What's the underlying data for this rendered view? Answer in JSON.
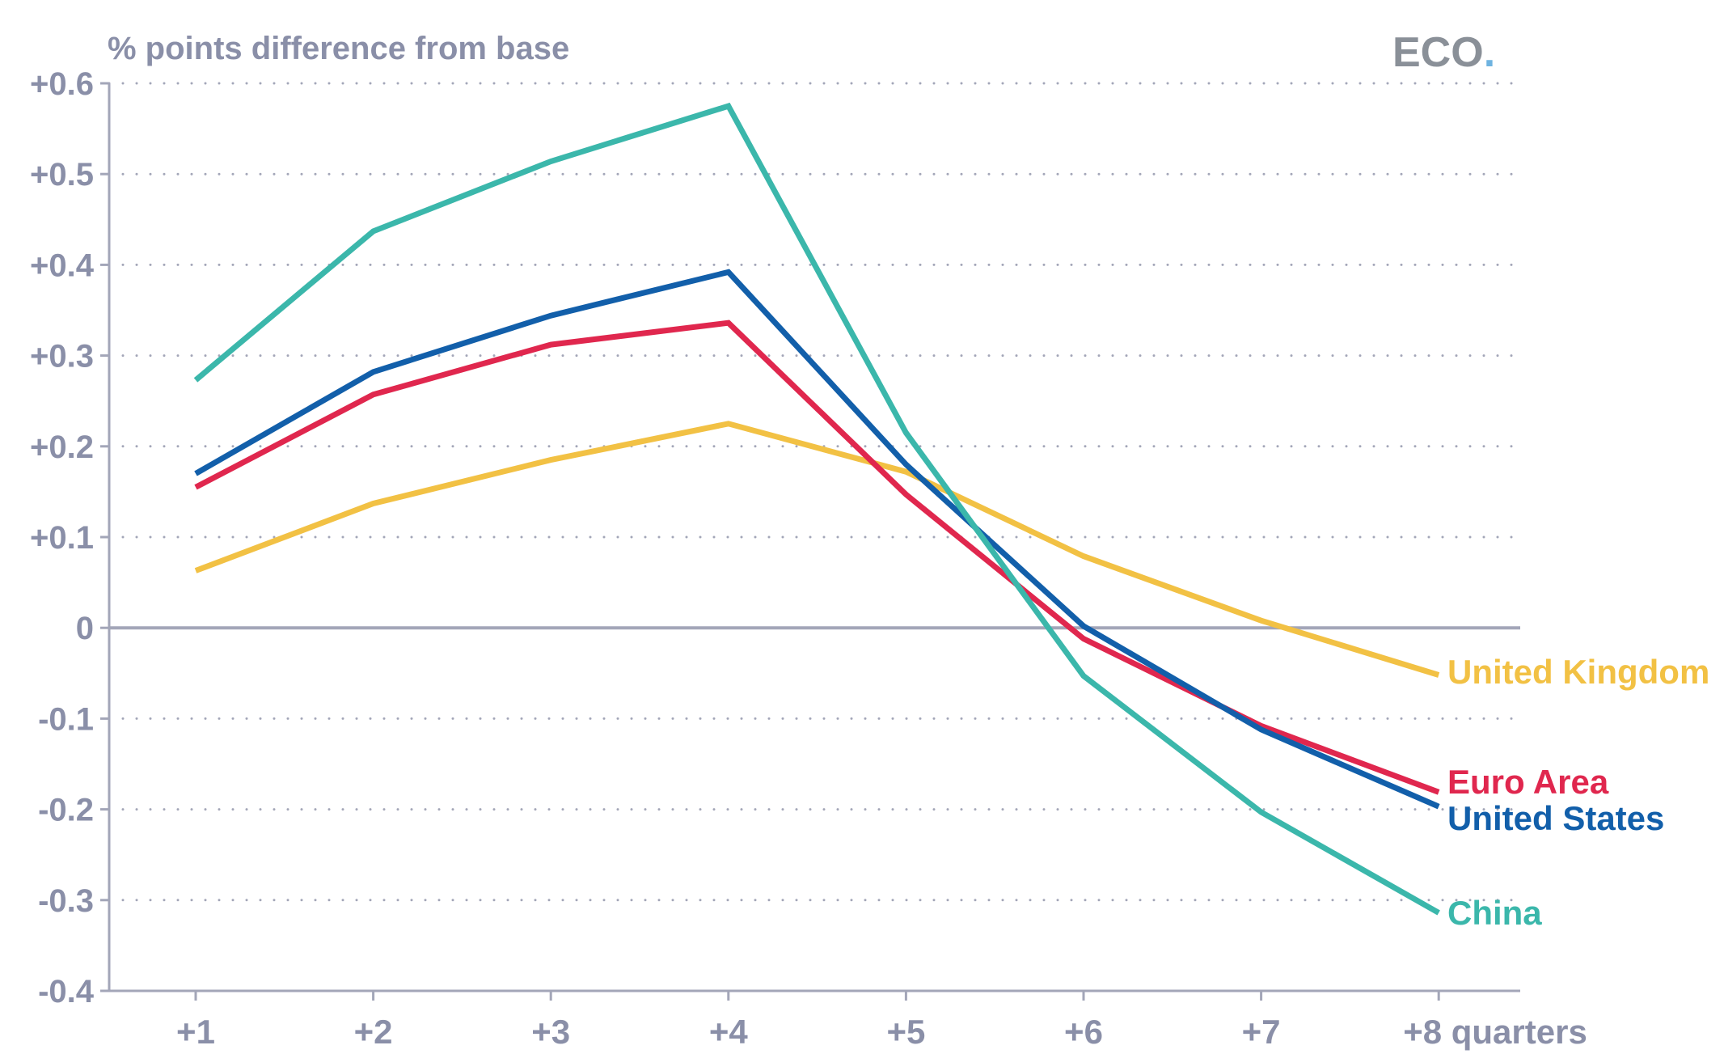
{
  "brand": {
    "text": "ECO",
    "dot": ".",
    "text_color": "#8a9098",
    "dot_color": "#6fb3e0"
  },
  "chart_data": {
    "type": "line",
    "ylabel": "% points difference from base",
    "x": [
      "+1",
      "+2",
      "+3",
      "+4",
      "+5",
      "+6",
      "+7",
      "+8"
    ],
    "x_tick_labels": [
      "+1",
      "+2",
      "+3",
      "+4",
      "+5",
      "+6",
      "+7",
      "+8 quarters"
    ],
    "ylim": [
      -0.4,
      0.6
    ],
    "y_ticks": [
      0.6,
      0.5,
      0.4,
      0.3,
      0.2,
      0.1,
      0.0,
      -0.1,
      -0.2,
      -0.3,
      -0.4
    ],
    "y_tick_labels": [
      "+0.6",
      "+0.5",
      "+0.4",
      "+0.3",
      "+0.2",
      "+0.1",
      "0",
      "-0.1",
      "-0.2",
      "-0.3",
      "-0.4"
    ],
    "grid": "horizontal dotted",
    "legend": "direct labels at line ends",
    "series": [
      {
        "name": "United Kingdom",
        "color": "#f2c144",
        "values": [
          0.063,
          0.137,
          0.185,
          0.225,
          0.172,
          0.079,
          0.008,
          -0.052
        ]
      },
      {
        "name": "Euro Area",
        "color": "#e0274e",
        "values": [
          0.155,
          0.257,
          0.312,
          0.336,
          0.147,
          -0.012,
          -0.108,
          -0.181
        ]
      },
      {
        "name": "United States",
        "color": "#125faa",
        "values": [
          0.17,
          0.282,
          0.344,
          0.392,
          0.18,
          0.002,
          -0.112,
          -0.197
        ]
      },
      {
        "name": "China",
        "color": "#3bb7ab",
        "values": [
          0.273,
          0.437,
          0.514,
          0.575,
          0.215,
          -0.053,
          -0.203,
          -0.314
        ]
      }
    ]
  }
}
